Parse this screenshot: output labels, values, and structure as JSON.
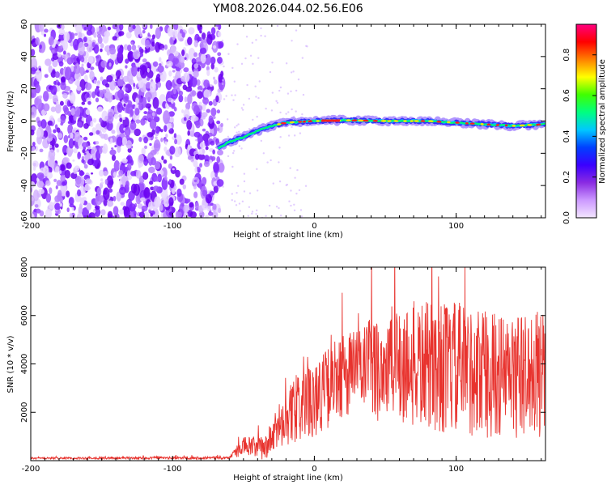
{
  "title": "YM08.2026.044.02.56.E06",
  "colors": {
    "snr_line": "#e8332e",
    "spectrogram_noise": "#7a2cff"
  },
  "chart_data": [
    {
      "type": "heatmap",
      "name": "spectrogram",
      "xlabel": "Height of straight line (km)",
      "ylabel": "Frequency (Hz)",
      "xlim": [
        -200,
        163
      ],
      "ylim": [
        -60,
        60
      ],
      "x_ticks": [
        -200,
        -100,
        0,
        100
      ],
      "x_tick_labels": [
        "-200",
        "-100",
        "0",
        "100"
      ],
      "y_ticks": [
        -60,
        -40,
        -20,
        0,
        20,
        40,
        60
      ],
      "y_tick_labels": [
        "-60",
        "-40",
        "-20",
        "0",
        "20",
        "40",
        "60"
      ],
      "colorbar": {
        "label": "Normalized spectral amplitude",
        "range": [
          0,
          0.95
        ],
        "ticks": [
          0.0,
          0.2,
          0.4,
          0.6,
          0.8
        ],
        "tick_labels": [
          "0.0",
          "0.2",
          "0.4",
          "0.6",
          "0.8"
        ],
        "colormap": [
          "#f3e6ff",
          "#cc99ff",
          "#8a2be2",
          "#3a00ff",
          "#0040ff",
          "#00c8ff",
          "#00ff80",
          "#40ff00",
          "#ffff00",
          "#ff8000",
          "#ff0000",
          "#ff0080"
        ]
      },
      "noise_region_x": [
        -200,
        -65
      ],
      "signal_track": [
        {
          "x": -68,
          "freq": -17
        },
        {
          "x": -60,
          "freq": -13
        },
        {
          "x": -50,
          "freq": -10
        },
        {
          "x": -40,
          "freq": -6
        },
        {
          "x": -30,
          "freq": -3
        },
        {
          "x": -20,
          "freq": -1
        },
        {
          "x": 0,
          "freq": 0
        },
        {
          "x": 20,
          "freq": 0.5
        },
        {
          "x": 50,
          "freq": 0
        },
        {
          "x": 80,
          "freq": 0
        },
        {
          "x": 100,
          "freq": -1
        },
        {
          "x": 120,
          "freq": -2
        },
        {
          "x": 140,
          "freq": -3
        },
        {
          "x": 163,
          "freq": -2
        }
      ]
    },
    {
      "type": "line",
      "name": "snr",
      "xlabel": "Height of straight line (km)",
      "ylabel": "SNR (10 * v/v)",
      "xlim": [
        -200,
        163
      ],
      "ylim": [
        0,
        8000
      ],
      "x_ticks": [
        -200,
        -100,
        0,
        100
      ],
      "x_tick_labels": [
        "-200",
        "-100",
        "0",
        "100"
      ],
      "y_ticks": [
        2000,
        4000,
        6000,
        8000
      ],
      "y_tick_labels": [
        "2000",
        "4000",
        "6000",
        "8000"
      ],
      "envelope": [
        {
          "x": -200,
          "mean": 100,
          "spread": 40
        },
        {
          "x": -60,
          "mean": 120,
          "spread": 60
        },
        {
          "x": -50,
          "mean": 600,
          "spread": 400
        },
        {
          "x": -35,
          "mean": 500,
          "spread": 500
        },
        {
          "x": -20,
          "mean": 1800,
          "spread": 1200
        },
        {
          "x": 0,
          "mean": 2600,
          "spread": 1600
        },
        {
          "x": 25,
          "mean": 3700,
          "spread": 1800
        },
        {
          "x": 60,
          "mean": 4000,
          "spread": 2600
        },
        {
          "x": 100,
          "mean": 3800,
          "spread": 2800
        },
        {
          "x": 130,
          "mean": 3500,
          "spread": 2600
        },
        {
          "x": 163,
          "mean": 3500,
          "spread": 2600
        }
      ]
    }
  ]
}
